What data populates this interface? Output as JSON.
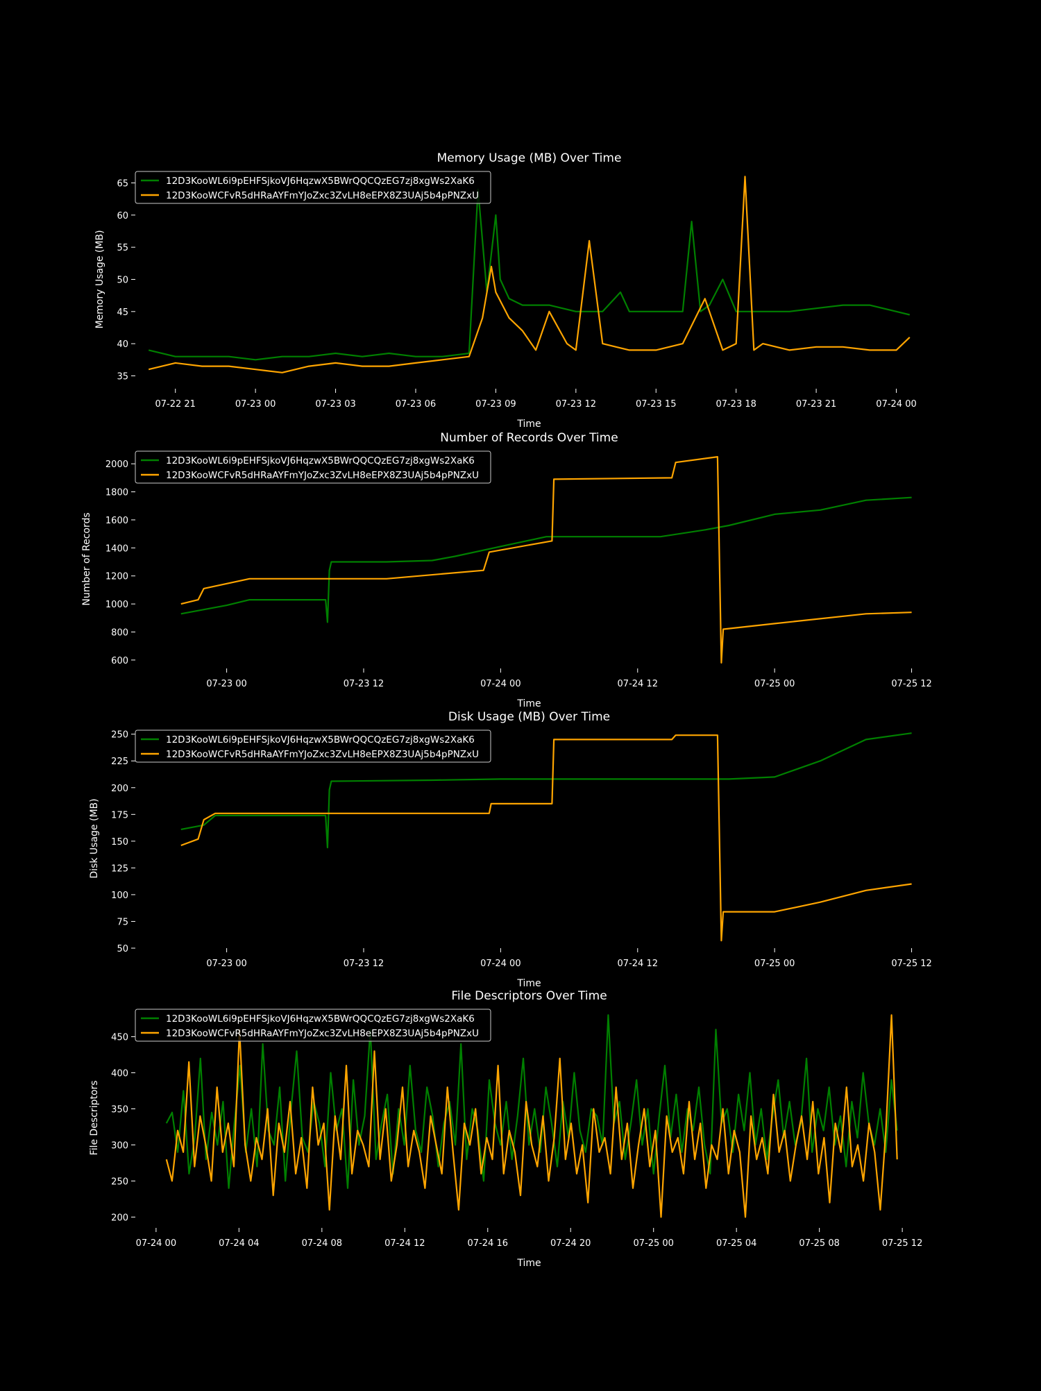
{
  "figure": {
    "background": "#000000",
    "text_color": "#ffffff"
  },
  "chart_data": [
    {
      "type": "line",
      "title": "Memory Usage (MB) Over Time",
      "xlabel": "Time",
      "ylabel": "Memory Usage (MB)",
      "xlim": [
        "2025-07-22 19:30",
        "2025-07-24 01:00"
      ],
      "ylim": [
        33,
        67
      ],
      "x_ticks": [
        "2025-07-22 21:00",
        "2025-07-23 00:00",
        "2025-07-23 03:00",
        "2025-07-23 06:00",
        "2025-07-23 09:00",
        "2025-07-23 12:00",
        "2025-07-23 15:00",
        "2025-07-23 18:00",
        "2025-07-23 21:00",
        "2025-07-24 00:00"
      ],
      "x_tick_labels": [
        "07-22 21",
        "07-23 00",
        "07-23 03",
        "07-23 06",
        "07-23 09",
        "07-23 12",
        "07-23 15",
        "07-23 18",
        "07-23 21",
        "07-24 00"
      ],
      "y_ticks": [
        35,
        40,
        45,
        50,
        55,
        60,
        65
      ],
      "grid": false,
      "legend_position": "top-left",
      "series": [
        {
          "name": "12D3KooWL6i9pEHFSjkoVJ6HqzwX5BWrQQCQzEG7zj8xgWs2XaK6",
          "color": "#008000",
          "x": [
            "2025-07-22 20:00",
            "2025-07-22 21:00",
            "2025-07-22 22:00",
            "2025-07-22 23:00",
            "2025-07-23 00:00",
            "2025-07-23 01:00",
            "2025-07-23 02:00",
            "2025-07-23 03:00",
            "2025-07-23 04:00",
            "2025-07-23 05:00",
            "2025-07-23 06:00",
            "2025-07-23 07:00",
            "2025-07-23 08:00",
            "2025-07-23 08:20",
            "2025-07-23 08:40",
            "2025-07-23 09:00",
            "2025-07-23 09:10",
            "2025-07-23 09:30",
            "2025-07-23 10:00",
            "2025-07-23 11:00",
            "2025-07-23 12:00",
            "2025-07-23 13:00",
            "2025-07-23 13:40",
            "2025-07-23 14:00",
            "2025-07-23 15:00",
            "2025-07-23 16:00",
            "2025-07-23 16:20",
            "2025-07-23 16:40",
            "2025-07-23 17:00",
            "2025-07-23 17:30",
            "2025-07-23 18:00",
            "2025-07-23 19:00",
            "2025-07-23 20:00",
            "2025-07-23 21:00",
            "2025-07-23 22:00",
            "2025-07-23 23:00",
            "2025-07-24 00:00",
            "2025-07-24 00:30"
          ],
          "values": [
            39,
            38,
            38,
            38,
            37.5,
            38,
            38,
            38.5,
            38,
            38.5,
            38,
            38,
            38.5,
            64,
            48,
            60,
            50,
            47,
            46,
            46,
            45,
            45,
            48,
            45,
            45,
            45,
            59,
            45,
            46,
            50,
            45,
            45,
            45,
            45.5,
            46,
            46,
            45,
            44.5
          ]
        },
        {
          "name": "12D3KooWCFvR5dHRaAYFmYJoZxc3ZvLH8eEPX8Z3UAj5b4pPNZxU",
          "color": "#ffa500",
          "x": [
            "2025-07-22 20:00",
            "2025-07-22 21:00",
            "2025-07-22 22:00",
            "2025-07-22 23:00",
            "2025-07-23 00:00",
            "2025-07-23 01:00",
            "2025-07-23 02:00",
            "2025-07-23 03:00",
            "2025-07-23 04:00",
            "2025-07-23 05:00",
            "2025-07-23 06:00",
            "2025-07-23 07:00",
            "2025-07-23 08:00",
            "2025-07-23 08:30",
            "2025-07-23 08:50",
            "2025-07-23 09:00",
            "2025-07-23 09:30",
            "2025-07-23 10:00",
            "2025-07-23 10:30",
            "2025-07-23 11:00",
            "2025-07-23 11:40",
            "2025-07-23 12:00",
            "2025-07-23 12:30",
            "2025-07-23 13:00",
            "2025-07-23 14:00",
            "2025-07-23 15:00",
            "2025-07-23 16:00",
            "2025-07-23 16:50",
            "2025-07-23 17:30",
            "2025-07-23 18:00",
            "2025-07-23 18:20",
            "2025-07-23 18:40",
            "2025-07-23 19:00",
            "2025-07-23 20:00",
            "2025-07-23 21:00",
            "2025-07-23 22:00",
            "2025-07-23 23:00",
            "2025-07-24 00:00",
            "2025-07-24 00:30"
          ],
          "values": [
            36,
            37,
            36.5,
            36.5,
            36,
            35.5,
            36.5,
            37,
            36.5,
            36.5,
            37,
            37.5,
            38,
            44,
            52,
            48,
            44,
            42,
            39,
            45,
            40,
            39,
            56,
            40,
            39,
            39,
            40,
            47,
            39,
            40,
            66,
            39,
            40,
            39,
            39.5,
            39.5,
            39,
            39,
            41
          ]
        }
      ]
    },
    {
      "type": "line",
      "title": "Number of Records Over Time",
      "xlabel": "Time",
      "ylabel": "Number of Records",
      "xlim": [
        "2025-07-22 16:00",
        "2025-07-25 13:00"
      ],
      "ylim": [
        540,
        2100
      ],
      "x_ticks": [
        "2025-07-23 00:00",
        "2025-07-23 12:00",
        "2025-07-24 00:00",
        "2025-07-24 12:00",
        "2025-07-25 00:00",
        "2025-07-25 12:00"
      ],
      "x_tick_labels": [
        "07-23 00",
        "07-23 12",
        "07-24 00",
        "07-24 12",
        "07-25 00",
        "07-25 12"
      ],
      "y_ticks": [
        600,
        800,
        1000,
        1200,
        1400,
        1600,
        1800,
        2000
      ],
      "grid": false,
      "legend_position": "top-left",
      "series": [
        {
          "name": "12D3KooWL6i9pEHFSjkoVJ6HqzwX5BWrQQCQzEG7zj8xgWs2XaK6",
          "color": "#008000",
          "x": [
            "2025-07-22 20:00",
            "2025-07-23 00:00",
            "2025-07-23 02:00",
            "2025-07-23 08:00",
            "2025-07-23 08:40",
            "2025-07-23 08:50",
            "2025-07-23 09:00",
            "2025-07-23 09:10",
            "2025-07-23 14:00",
            "2025-07-23 18:00",
            "2025-07-23 20:00",
            "2025-07-24 00:00",
            "2025-07-24 04:00",
            "2025-07-24 14:00",
            "2025-07-24 18:00",
            "2025-07-24 20:00",
            "2025-07-25 00:00",
            "2025-07-25 04:00",
            "2025-07-25 08:00",
            "2025-07-25 12:00"
          ],
          "values": [
            930,
            990,
            1030,
            1030,
            1030,
            870,
            1240,
            1300,
            1300,
            1310,
            1340,
            1410,
            1480,
            1480,
            1530,
            1560,
            1640,
            1670,
            1740,
            1760
          ]
        },
        {
          "name": "12D3KooWCFvR5dHRaAYFmYJoZxc3ZvLH8eEPX8Z3UAj5b4pPNZxU",
          "color": "#ffa500",
          "x": [
            "2025-07-22 20:00",
            "2025-07-22 21:30",
            "2025-07-22 22:00",
            "2025-07-23 02:00",
            "2025-07-23 14:00",
            "2025-07-23 22:30",
            "2025-07-23 23:00",
            "2025-07-24 04:30",
            "2025-07-24 04:40",
            "2025-07-24 15:00",
            "2025-07-24 15:20",
            "2025-07-24 19:00",
            "2025-07-24 19:20",
            "2025-07-24 19:30",
            "2025-07-25 00:00",
            "2025-07-25 08:00",
            "2025-07-25 12:00"
          ],
          "values": [
            1000,
            1030,
            1110,
            1180,
            1180,
            1240,
            1370,
            1450,
            1890,
            1900,
            2010,
            2050,
            580,
            820,
            860,
            930,
            940
          ]
        }
      ]
    },
    {
      "type": "line",
      "title": "Disk Usage (MB) Over Time",
      "xlabel": "Time",
      "ylabel": "Disk Usage (MB)",
      "xlim": [
        "2025-07-22 16:00",
        "2025-07-25 13:00"
      ],
      "ylim": [
        50,
        255
      ],
      "x_ticks": [
        "2025-07-23 00:00",
        "2025-07-23 12:00",
        "2025-07-24 00:00",
        "2025-07-24 12:00",
        "2025-07-25 00:00",
        "2025-07-25 12:00"
      ],
      "x_tick_labels": [
        "07-23 00",
        "07-23 12",
        "07-24 00",
        "07-24 12",
        "07-25 00",
        "07-25 12"
      ],
      "y_ticks": [
        50,
        75,
        100,
        125,
        150,
        175,
        200,
        225,
        250
      ],
      "grid": false,
      "legend_position": "top-left",
      "series": [
        {
          "name": "12D3KooWL6i9pEHFSjkoVJ6HqzwX5BWrQQCQzEG7zj8xgWs2XaK6",
          "color": "#008000",
          "x": [
            "2025-07-22 20:00",
            "2025-07-22 22:00",
            "2025-07-22 23:00",
            "2025-07-23 08:40",
            "2025-07-23 08:50",
            "2025-07-23 09:00",
            "2025-07-23 09:10",
            "2025-07-23 18:00",
            "2025-07-24 00:00",
            "2025-07-24 20:00",
            "2025-07-25 00:00",
            "2025-07-25 04:00",
            "2025-07-25 08:00",
            "2025-07-25 12:00"
          ],
          "values": [
            161,
            165,
            174,
            174,
            144,
            198,
            206,
            207,
            208,
            208,
            210,
            225,
            245,
            251
          ]
        },
        {
          "name": "12D3KooWCFvR5dHRaAYFmYJoZxc3ZvLH8eEPX8Z3UAj5b4pPNZxU",
          "color": "#ffa500",
          "x": [
            "2025-07-22 20:00",
            "2025-07-22 21:30",
            "2025-07-22 22:00",
            "2025-07-22 23:00",
            "2025-07-23 23:00",
            "2025-07-23 23:10",
            "2025-07-24 04:30",
            "2025-07-24 04:40",
            "2025-07-24 15:00",
            "2025-07-24 15:20",
            "2025-07-24 19:00",
            "2025-07-24 19:20",
            "2025-07-24 19:30",
            "2025-07-25 00:00",
            "2025-07-25 04:00",
            "2025-07-25 08:00",
            "2025-07-25 12:00"
          ],
          "values": [
            146,
            152,
            170,
            176,
            176,
            185,
            185,
            245,
            245,
            249,
            249,
            57,
            84,
            84,
            93,
            104,
            110
          ]
        }
      ]
    },
    {
      "type": "line",
      "title": "File Descriptors Over Time",
      "xlabel": "Time",
      "ylabel": "File Descriptors",
      "xlim": [
        "2025-07-23 23:00",
        "2025-07-25 13:00"
      ],
      "ylim": [
        185,
        490
      ],
      "x_ticks": [
        "2025-07-24 00:00",
        "2025-07-24 04:00",
        "2025-07-24 08:00",
        "2025-07-24 12:00",
        "2025-07-24 16:00",
        "2025-07-24 20:00",
        "2025-07-25 00:00",
        "2025-07-25 04:00",
        "2025-07-25 08:00",
        "2025-07-25 12:00"
      ],
      "x_tick_labels": [
        "07-24 00",
        "07-24 04",
        "07-24 08",
        "07-24 12",
        "07-24 16",
        "07-24 20",
        "07-25 00",
        "07-25 04",
        "07-25 08",
        "07-25 12"
      ],
      "y_ticks": [
        200,
        250,
        300,
        350,
        400,
        450
      ],
      "grid": false,
      "legend_position": "top-left",
      "series": [
        {
          "name": "12D3KooWL6i9pEHFSjkoVJ6HqzwX5BWrQQCQzEG7zj8xgWs2XaK6",
          "color": "#008000",
          "x_start": "2025-07-24 00:30",
          "x_end": "2025-07-25 11:45",
          "values": [
            330,
            345,
            290,
            375,
            260,
            310,
            420,
            280,
            345,
            300,
            360,
            240,
            330,
            410,
            290,
            350,
            270,
            440,
            320,
            300,
            380,
            250,
            350,
            430,
            310,
            290,
            360,
            330,
            270,
            400,
            320,
            350,
            240,
            390,
            300,
            340,
            460,
            280,
            330,
            370,
            260,
            350,
            300,
            410,
            320,
            290,
            380,
            340,
            270,
            330,
            360,
            300,
            440,
            280,
            350,
            320,
            250,
            390,
            330,
            300,
            360,
            280,
            340,
            420,
            300,
            350,
            290,
            380,
            330,
            270,
            360,
            310,
            400,
            320,
            290,
            350,
            340,
            300,
            480,
            330,
            360,
            280,
            330,
            390,
            300,
            350,
            260,
            340,
            410,
            310,
            370,
            290,
            350,
            320,
            380,
            300,
            260,
            460,
            330,
            350,
            290,
            370,
            320,
            400,
            300,
            350,
            280,
            340,
            390,
            310,
            360,
            300,
            330,
            420,
            290,
            350,
            320,
            380,
            300,
            340,
            270,
            360,
            310,
            400,
            330,
            300,
            350,
            290,
            390,
            320
          ]
        },
        {
          "name": "12D3KooWCFvR5dHRaAYFmYJoZxc3ZvLH8eEPX8Z3UAj5b4pPNZxU",
          "color": "#ffa500",
          "x_start": "2025-07-24 00:30",
          "x_end": "2025-07-25 11:45",
          "values": [
            280,
            250,
            320,
            290,
            415,
            270,
            340,
            300,
            250,
            380,
            290,
            330,
            270,
            460,
            300,
            250,
            310,
            280,
            350,
            230,
            330,
            290,
            360,
            260,
            310,
            240,
            380,
            300,
            330,
            210,
            340,
            280,
            410,
            260,
            320,
            300,
            270,
            430,
            280,
            350,
            250,
            300,
            380,
            270,
            320,
            290,
            240,
            340,
            300,
            260,
            380,
            290,
            210,
            330,
            300,
            350,
            260,
            310,
            280,
            410,
            260,
            320,
            290,
            230,
            360,
            300,
            270,
            340,
            250,
            310,
            420,
            280,
            330,
            260,
            300,
            220,
            350,
            290,
            310,
            260,
            380,
            280,
            330,
            240,
            300,
            350,
            270,
            320,
            200,
            340,
            290,
            310,
            260,
            360,
            280,
            330,
            240,
            300,
            280,
            350,
            260,
            320,
            290,
            200,
            340,
            280,
            310,
            260,
            370,
            290,
            320,
            250,
            300,
            340,
            280,
            360,
            260,
            310,
            220,
            330,
            290,
            380,
            270,
            300,
            250,
            330,
            290,
            210,
            320,
            480,
            280
          ]
        }
      ]
    }
  ]
}
